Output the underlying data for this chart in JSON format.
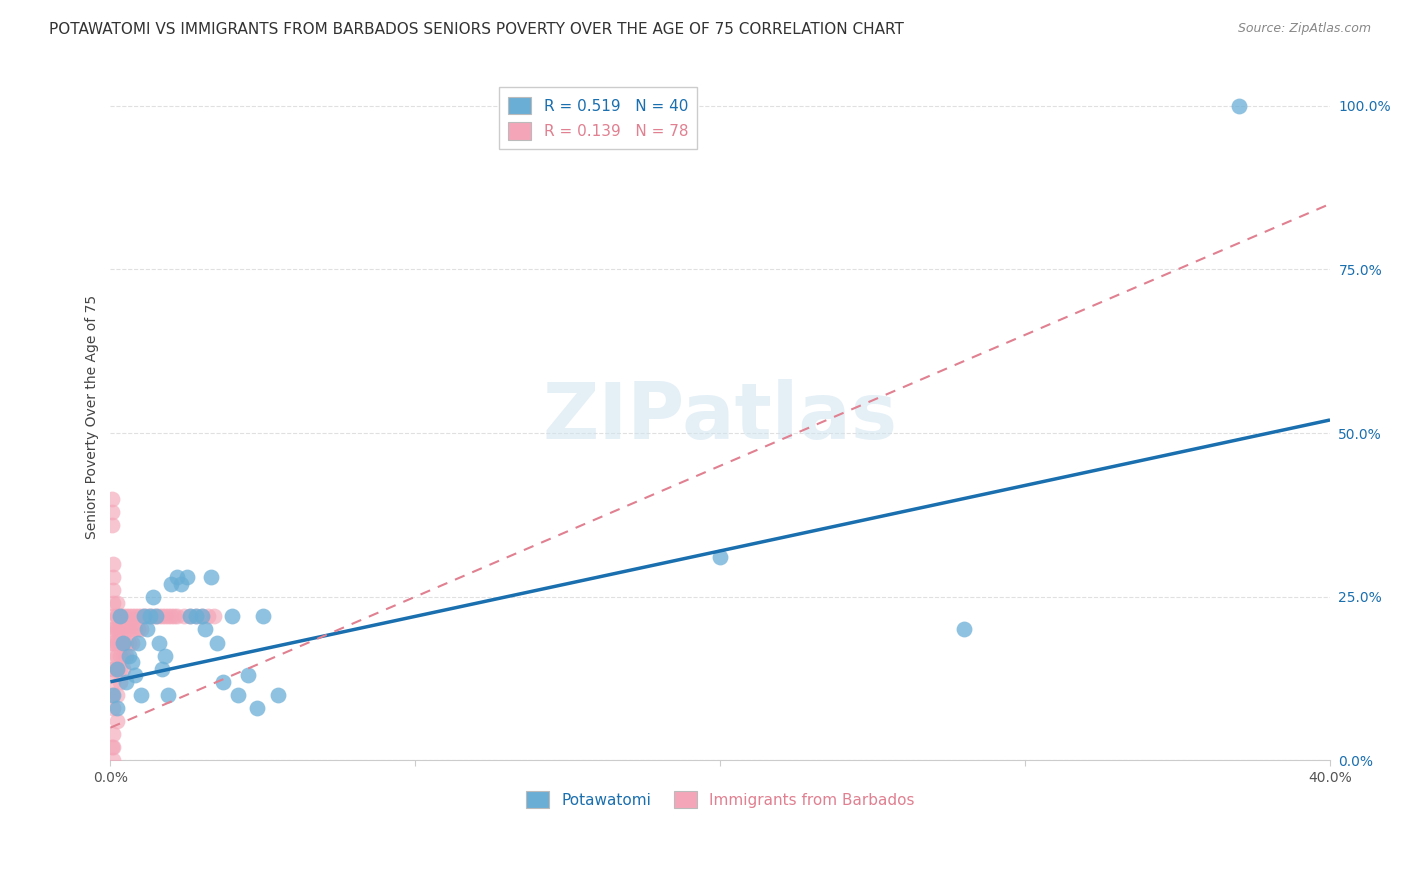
{
  "title": "POTAWATOMI VS IMMIGRANTS FROM BARBADOS SENIORS POVERTY OVER THE AGE OF 75 CORRELATION CHART",
  "source": "Source: ZipAtlas.com",
  "ylabel": "Seniors Poverty Over the Age of 75",
  "xlabel_blue": "Potawatomi",
  "xlabel_pink": "Immigrants from Barbados",
  "xlim": [
    0.0,
    0.4
  ],
  "ylim": [
    0.0,
    1.05
  ],
  "yticks": [
    0.0,
    0.25,
    0.5,
    0.75,
    1.0
  ],
  "ytick_labels": [
    "0.0%",
    "25.0%",
    "50.0%",
    "75.0%",
    "100.0%"
  ],
  "xticks": [
    0.0,
    0.1,
    0.2,
    0.3,
    0.4
  ],
  "xtick_labels": [
    "0.0%",
    "",
    "",
    "",
    "40.0%"
  ],
  "blue_R": 0.519,
  "blue_N": 40,
  "pink_R": 0.139,
  "pink_N": 78,
  "blue_color": "#6aaed6",
  "pink_color": "#f4a6b8",
  "blue_line_color": "#1a6faf",
  "pink_line_color": "#e08090",
  "watermark": "ZIPatlas",
  "blue_scatter_x": [
    0.001,
    0.002,
    0.002,
    0.003,
    0.004,
    0.005,
    0.006,
    0.007,
    0.008,
    0.009,
    0.01,
    0.011,
    0.012,
    0.013,
    0.014,
    0.015,
    0.016,
    0.017,
    0.018,
    0.019,
    0.02,
    0.022,
    0.023,
    0.025,
    0.026,
    0.028,
    0.03,
    0.031,
    0.033,
    0.035,
    0.037,
    0.04,
    0.042,
    0.045,
    0.048,
    0.05,
    0.055,
    0.2,
    0.28,
    0.37
  ],
  "blue_scatter_y": [
    0.1,
    0.08,
    0.14,
    0.22,
    0.18,
    0.12,
    0.16,
    0.15,
    0.13,
    0.18,
    0.1,
    0.22,
    0.2,
    0.22,
    0.25,
    0.22,
    0.18,
    0.14,
    0.16,
    0.1,
    0.27,
    0.28,
    0.27,
    0.28,
    0.22,
    0.22,
    0.22,
    0.2,
    0.28,
    0.18,
    0.12,
    0.22,
    0.1,
    0.13,
    0.08,
    0.22,
    0.1,
    0.31,
    0.2,
    1.0
  ],
  "pink_scatter_x": [
    0.0005,
    0.0005,
    0.0005,
    0.0005,
    0.0005,
    0.0008,
    0.001,
    0.001,
    0.001,
    0.001,
    0.001,
    0.001,
    0.001,
    0.001,
    0.001,
    0.001,
    0.001,
    0.001,
    0.0015,
    0.0015,
    0.002,
    0.002,
    0.002,
    0.002,
    0.002,
    0.002,
    0.002,
    0.002,
    0.002,
    0.002,
    0.0025,
    0.003,
    0.003,
    0.003,
    0.003,
    0.003,
    0.003,
    0.004,
    0.004,
    0.004,
    0.004,
    0.004,
    0.005,
    0.005,
    0.005,
    0.005,
    0.006,
    0.006,
    0.006,
    0.007,
    0.007,
    0.007,
    0.008,
    0.008,
    0.009,
    0.009,
    0.01,
    0.01,
    0.011,
    0.012,
    0.013,
    0.014,
    0.015,
    0.016,
    0.017,
    0.018,
    0.019,
    0.02,
    0.021,
    0.022,
    0.024,
    0.026,
    0.028,
    0.03,
    0.032,
    0.034,
    0.001,
    0.001
  ],
  "pink_scatter_y": [
    0.36,
    0.38,
    0.4,
    0.1,
    0.02,
    0.14,
    0.18,
    0.2,
    0.24,
    0.26,
    0.22,
    0.18,
    0.14,
    0.08,
    0.04,
    0.02,
    0.0,
    0.12,
    0.2,
    0.16,
    0.22,
    0.2,
    0.18,
    0.16,
    0.14,
    0.1,
    0.06,
    0.24,
    0.22,
    0.18,
    0.2,
    0.22,
    0.2,
    0.18,
    0.16,
    0.14,
    0.12,
    0.22,
    0.2,
    0.18,
    0.16,
    0.14,
    0.22,
    0.2,
    0.18,
    0.16,
    0.22,
    0.2,
    0.18,
    0.22,
    0.2,
    0.18,
    0.22,
    0.2,
    0.22,
    0.2,
    0.22,
    0.2,
    0.22,
    0.22,
    0.22,
    0.22,
    0.22,
    0.22,
    0.22,
    0.22,
    0.22,
    0.22,
    0.22,
    0.22,
    0.22,
    0.22,
    0.22,
    0.22,
    0.22,
    0.22,
    0.3,
    0.28
  ],
  "blue_line_x0": 0.0,
  "blue_line_y0": 0.12,
  "blue_line_x1": 0.4,
  "blue_line_y1": 0.52,
  "pink_line_x0": 0.0,
  "pink_line_y0": 0.05,
  "pink_line_x1": 0.4,
  "pink_line_y1": 0.85,
  "grid_color": "#e0e0e0",
  "background_color": "#ffffff",
  "title_fontsize": 11,
  "axis_label_fontsize": 10,
  "tick_fontsize": 10,
  "legend_fontsize": 11,
  "source_fontsize": 9
}
